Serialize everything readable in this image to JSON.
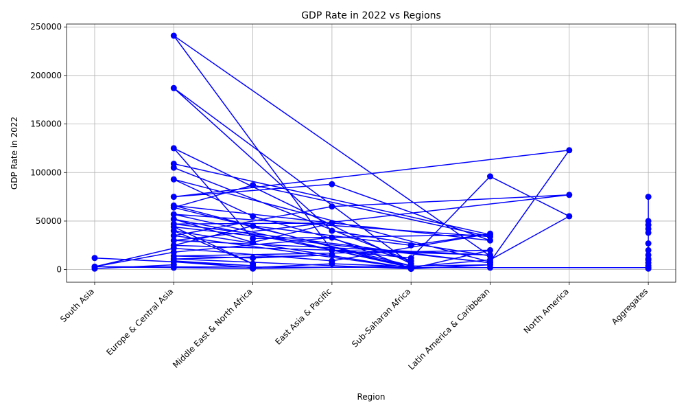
{
  "chart_data": {
    "type": "line",
    "title": "GDP Rate in 2022 vs Regions",
    "xlabel": "Region",
    "ylabel": "GDP Rate in 2022",
    "categories": [
      "South Asia",
      "Europe & Central Asia",
      "Middle East & North Africa",
      "East Asia & Pacific",
      "Sub-Saharan Africa",
      "Latin America & Caribbean",
      "North America",
      "Aggregates"
    ],
    "yticks": [
      "0",
      "50000",
      "100000",
      "150000",
      "200000",
      "250000"
    ],
    "ylim": [
      -13000,
      253000
    ],
    "grid": true,
    "legend": "none",
    "series_color": "#0000ff",
    "x": [
      "South Asia",
      "Europe & Central Asia",
      "Europe & Central Asia",
      "Middle East & North Africa",
      "South Asia",
      "Europe & Central Asia",
      "Middle East & North Africa",
      "East Asia & Pacific",
      "Sub-Saharan Africa",
      "Latin America & Caribbean",
      "North America",
      "Latin America & Caribbean",
      "Sub-Saharan Africa",
      "East Asia & Pacific",
      "Europe & Central Asia",
      "Latin America & Caribbean",
      "East Asia & Pacific",
      "Europe & Central Asia",
      "Sub-Saharan Africa",
      "Europe & Central Asia",
      "Middle East & North Africa",
      "Latin America & Caribbean",
      "Europe & Central Asia",
      "Europe & Central Asia",
      "Sub-Saharan Africa",
      "Middle East & North Africa",
      "Europe & Central Asia",
      "Latin America & Caribbean",
      "North America",
      "Europe & Central Asia",
      "East Asia & Pacific",
      "Latin America & Caribbean",
      "Europe & Central Asia",
      "Sub-Saharan Africa",
      "Europe & Central Asia",
      "Latin America & Caribbean",
      "Middle East & North Africa",
      "Europe & Central Asia",
      "Sub-Saharan Africa",
      "Europe & Central Asia",
      "Middle East & North Africa",
      "East Asia & Pacific",
      "Europe & Central Asia",
      "Latin America & Caribbean",
      "Europe & Central Asia",
      "Middle East & North Africa",
      "Europe & Central Asia",
      "Sub-Saharan Africa",
      "Europe & Central Asia",
      "East Asia & Pacific",
      "North America",
      "Europe & Central Asia",
      "Latin America & Caribbean",
      "Europe & Central Asia",
      "Middle East & North Africa",
      "Sub-Saharan Africa",
      "Latin America & Caribbean",
      "East Asia & Pacific",
      "Europe & Central Asia",
      "South Asia",
      "Europe & Central Asia",
      "East Asia & Pacific",
      "Sub-Saharan Africa",
      "Latin America & Caribbean",
      "Europe & Central Asia",
      "Middle East & North Africa",
      "East Asia & Pacific",
      "Europe & Central Asia",
      "Sub-Saharan Africa",
      "Latin America & Caribbean",
      "Middle East & North Africa",
      "Europe & Central Asia",
      "South Asia",
      "Latin America & Caribbean",
      "Aggregates",
      "Aggregates",
      "Aggregates",
      "Aggregates",
      "Aggregates",
      "Aggregates",
      "Aggregates",
      "Aggregates",
      "Aggregates",
      "Aggregates",
      "Aggregates",
      "Aggregates",
      "Aggregates",
      "Aggregates"
    ],
    "y": [
      1000,
      5000,
      9000,
      4000,
      12000,
      8000,
      2000,
      6000,
      3000,
      10000,
      55000,
      96000,
      12000,
      20000,
      241000,
      14000,
      40000,
      187000,
      6000,
      125000,
      32000,
      36000,
      109000,
      105000,
      9000,
      55000,
      93000,
      8000,
      123000,
      75000,
      88000,
      30000,
      66000,
      2000,
      57000,
      34000,
      87000,
      64000,
      4000,
      52000,
      28000,
      48000,
      47000,
      7000,
      44000,
      6000,
      40000,
      1500,
      35000,
      65000,
      77000,
      30000,
      15000,
      25000,
      45000,
      25000,
      37000,
      9000,
      22000,
      3000,
      18000,
      33000,
      1000,
      20000,
      14000,
      12000,
      15000,
      11000,
      700,
      5000,
      1000,
      2000,
      3000,
      2000,
      2000,
      1000,
      4000,
      7000,
      11000,
      15000,
      20000,
      27000,
      38000,
      42000,
      46000,
      50000,
      75000,
      10000
    ]
  }
}
